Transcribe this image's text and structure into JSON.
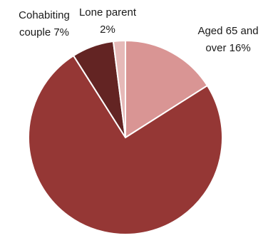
{
  "chart_data": {
    "type": "pie",
    "title": "",
    "slices": [
      {
        "label_lines": [
          "Aged 65 and",
          "over 16%"
        ],
        "value": 16,
        "color": "#d99594"
      },
      {
        "label_lines": [],
        "value": 75,
        "color": "#953735"
      },
      {
        "label_lines": [
          "Cohabiting",
          "couple 7%"
        ],
        "value": 7,
        "color": "#632423"
      },
      {
        "label_lines": [
          "Lone parent",
          "2%"
        ],
        "value": 2,
        "color": "#e6b9b8"
      }
    ],
    "start_angle_deg": 0,
    "direction": "clockwise",
    "edge_color": "#ffffff"
  }
}
